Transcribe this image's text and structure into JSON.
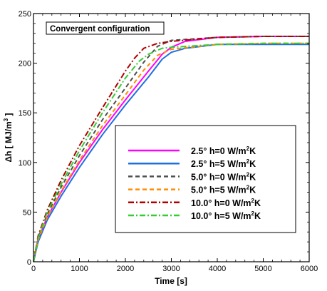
{
  "chart_data": {
    "type": "line",
    "annotation": "Convergent configuration",
    "xlabel": "Time [s]",
    "ylabel_main": "Δh [ MJ/m",
    "ylabel_sup": "3",
    "ylabel_end": " ]",
    "xlim": [
      0,
      6000
    ],
    "ylim": [
      0,
      250
    ],
    "xticks": [
      "0",
      "1000",
      "2000",
      "3000",
      "4000",
      "5000",
      "6000"
    ],
    "yticks": [
      "0",
      "50",
      "100",
      "150",
      "200",
      "250"
    ],
    "grid": false,
    "legend_position": "center-right",
    "series": [
      {
        "label_pre": "2.5° h=0 W/m",
        "label_sup": "2",
        "label_post": "K",
        "color": "#ff00ff",
        "dash": "",
        "points": [
          [
            0,
            0
          ],
          [
            100,
            22
          ],
          [
            300,
            45
          ],
          [
            600,
            70
          ],
          [
            1000,
            100
          ],
          [
            1500,
            133
          ],
          [
            2000,
            163
          ],
          [
            2500,
            192
          ],
          [
            2800,
            209
          ],
          [
            3000,
            216
          ],
          [
            3300,
            222
          ],
          [
            4000,
            226
          ],
          [
            5000,
            227
          ],
          [
            6000,
            227
          ]
        ]
      },
      {
        "label_pre": "2.5° h=5 W/m",
        "label_sup": "2",
        "label_post": "K",
        "color": "#1f6fe0",
        "dash": "",
        "points": [
          [
            0,
            0
          ],
          [
            100,
            20
          ],
          [
            300,
            42
          ],
          [
            600,
            66
          ],
          [
            1000,
            95
          ],
          [
            1500,
            128
          ],
          [
            2000,
            158
          ],
          [
            2500,
            186
          ],
          [
            2800,
            204
          ],
          [
            3000,
            211
          ],
          [
            3300,
            215
          ],
          [
            4000,
            219
          ],
          [
            5000,
            219
          ],
          [
            6000,
            219
          ]
        ]
      },
      {
        "label_pre": "5.0° h=0 W/m",
        "label_sup": "2",
        "label_post": "K",
        "color": "#505050",
        "dash": "6,4",
        "points": [
          [
            0,
            0
          ],
          [
            100,
            24
          ],
          [
            300,
            48
          ],
          [
            600,
            75
          ],
          [
            1000,
            107
          ],
          [
            1500,
            143
          ],
          [
            2000,
            175
          ],
          [
            2400,
            201
          ],
          [
            2700,
            217
          ],
          [
            3000,
            223
          ],
          [
            4000,
            226
          ],
          [
            5000,
            227
          ],
          [
            6000,
            227
          ]
        ]
      },
      {
        "label_pre": "5.0° h=5 W/m",
        "label_sup": "2",
        "label_post": "K",
        "color": "#ff8c00",
        "dash": "6,4",
        "points": [
          [
            0,
            0
          ],
          [
            100,
            22
          ],
          [
            300,
            45
          ],
          [
            600,
            71
          ],
          [
            1000,
            102
          ],
          [
            1500,
            137
          ],
          [
            2000,
            168
          ],
          [
            2400,
            193
          ],
          [
            2700,
            208
          ],
          [
            3000,
            214
          ],
          [
            4000,
            219
          ],
          [
            5000,
            220
          ],
          [
            6000,
            220
          ]
        ]
      },
      {
        "label_pre": "10.0° h=0 W/m",
        "label_sup": "2",
        "label_post": "K",
        "color": "#b00000",
        "dash": "8,3,2,3",
        "points": [
          [
            0,
            0
          ],
          [
            100,
            26
          ],
          [
            300,
            52
          ],
          [
            600,
            82
          ],
          [
            1000,
            117
          ],
          [
            1500,
            155
          ],
          [
            2000,
            192
          ],
          [
            2200,
            205
          ],
          [
            2400,
            215
          ],
          [
            2700,
            220
          ],
          [
            3000,
            222
          ],
          [
            4000,
            226
          ],
          [
            5000,
            227
          ],
          [
            6000,
            227
          ]
        ]
      },
      {
        "label_pre": "10.0° h=5 W/m",
        "label_sup": "2",
        "label_post": "K",
        "color": "#33cc33",
        "dash": "8,3,2,3",
        "points": [
          [
            0,
            0
          ],
          [
            100,
            24
          ],
          [
            300,
            50
          ],
          [
            600,
            78
          ],
          [
            1000,
            112
          ],
          [
            1500,
            150
          ],
          [
            2000,
            185
          ],
          [
            2300,
            202
          ],
          [
            2500,
            209
          ],
          [
            2800,
            215
          ],
          [
            3000,
            216
          ],
          [
            4000,
            219
          ],
          [
            5000,
            220
          ],
          [
            6000,
            220
          ]
        ]
      }
    ]
  }
}
